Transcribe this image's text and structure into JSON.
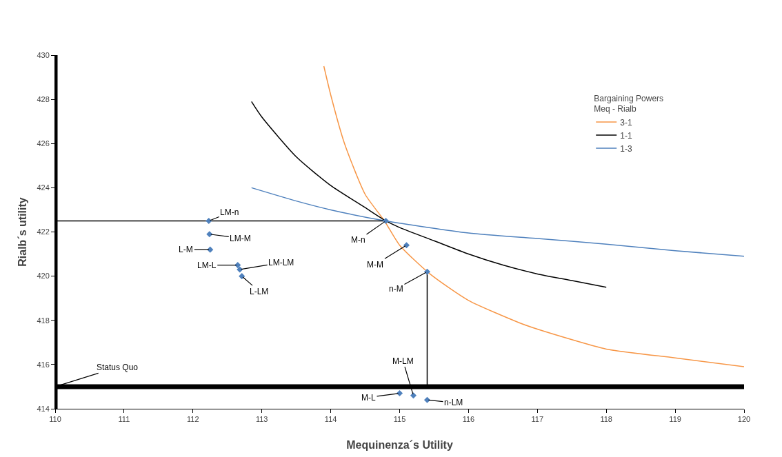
{
  "chart_data": {
    "type": "line",
    "xlabel": "Mequinenza´s Utility",
    "ylabel": "Rialb´s utility",
    "legend_title": "Bargaining Powers\nMeq - Rialb",
    "legend": "top right",
    "grid": false,
    "marker": "none",
    "line_style": "solid",
    "xlim": [
      110,
      120
    ],
    "xticks": [
      110,
      111,
      112,
      113,
      114,
      115,
      116,
      117,
      118,
      119,
      120
    ],
    "ylim": [
      414,
      430
    ],
    "yticks": [
      414,
      416,
      418,
      420,
      422,
      424,
      426,
      428,
      430
    ],
    "series": [
      {
        "name": "3-1",
        "color": "#f79646",
        "x": [
          113.9,
          114,
          114.2,
          114.5,
          114.78,
          115,
          115.44,
          116,
          116.73,
          117,
          118,
          119,
          120
        ],
        "values": [
          429.5,
          428.2,
          426,
          423.7,
          422.5,
          421.4,
          420.1,
          418.9,
          417.9,
          417.6,
          416.7,
          416.3,
          415.9
        ]
      },
      {
        "name": "1-1",
        "color": "#000000",
        "x": [
          112.85,
          113,
          113.5,
          114,
          114.5,
          114.8,
          115,
          115.5,
          116,
          116.5,
          117,
          117.5,
          118
        ],
        "values": [
          427.9,
          427.2,
          425.4,
          424.1,
          423.1,
          422.5,
          422.2,
          421.6,
          421,
          420.5,
          420.1,
          419.8,
          419.5
        ]
      },
      {
        "name": "1-3",
        "color": "#4f81bd",
        "x": [
          112.85,
          113.5,
          114,
          114.8,
          116,
          117,
          118,
          119,
          120
        ],
        "values": [
          424,
          423.4,
          423,
          422.5,
          421.95,
          421.7,
          421.45,
          421.15,
          420.9
        ]
      },
      {
        "type": "line",
        "color": "#000000",
        "x": [
          110,
          114.8
        ],
        "values": [
          422.5,
          422.5
        ]
      },
      {
        "type": "line",
        "color": "#000000",
        "x": [
          115.4,
          115.4
        ],
        "values": [
          415,
          420.2
        ]
      },
      {
        "type": "scatter",
        "marker": "diamond",
        "color": "#4f81bd",
        "x": [
          112.23,
          112.24,
          112.25,
          112.65,
          112.68,
          112.71,
          114.8,
          115.1,
          115.4,
          115,
          115.2,
          115.4
        ],
        "values": [
          422.5,
          421.9,
          421.2,
          420.5,
          420.3,
          420,
          422.5,
          421.4,
          420.2,
          414.7,
          414.6,
          414.4
        ]
      }
    ],
    "ref_lines": [
      {
        "axis": "y",
        "value": 415,
        "color": "#000000"
      },
      {
        "axis": "x",
        "value": 110,
        "color": "#000000"
      }
    ],
    "annotations": [
      {
        "text": "LM-n",
        "x": 112.23,
        "y": 422.5
      },
      {
        "text": "LM-M",
        "x": 112.24,
        "y": 421.9
      },
      {
        "text": "L-M",
        "x": 112.25,
        "y": 421.2
      },
      {
        "text": "LM-L",
        "x": 112.65,
        "y": 420.5
      },
      {
        "text": "LM-LM",
        "x": 112.68,
        "y": 420.3
      },
      {
        "text": "L-LM",
        "x": 112.71,
        "y": 420
      },
      {
        "text": "M-n",
        "x": 114.8,
        "y": 422.5
      },
      {
        "text": "M-M",
        "x": 115.1,
        "y": 421.4
      },
      {
        "text": "n-M",
        "x": 115.4,
        "y": 420.2
      },
      {
        "text": "M-L",
        "x": 115,
        "y": 414.7
      },
      {
        "text": "M-LM",
        "x": 115.2,
        "y": 414.6
      },
      {
        "text": "n-LM",
        "x": 115.4,
        "y": 414.4
      },
      {
        "text": "Status Quo",
        "x": 110,
        "y": 415
      }
    ]
  }
}
